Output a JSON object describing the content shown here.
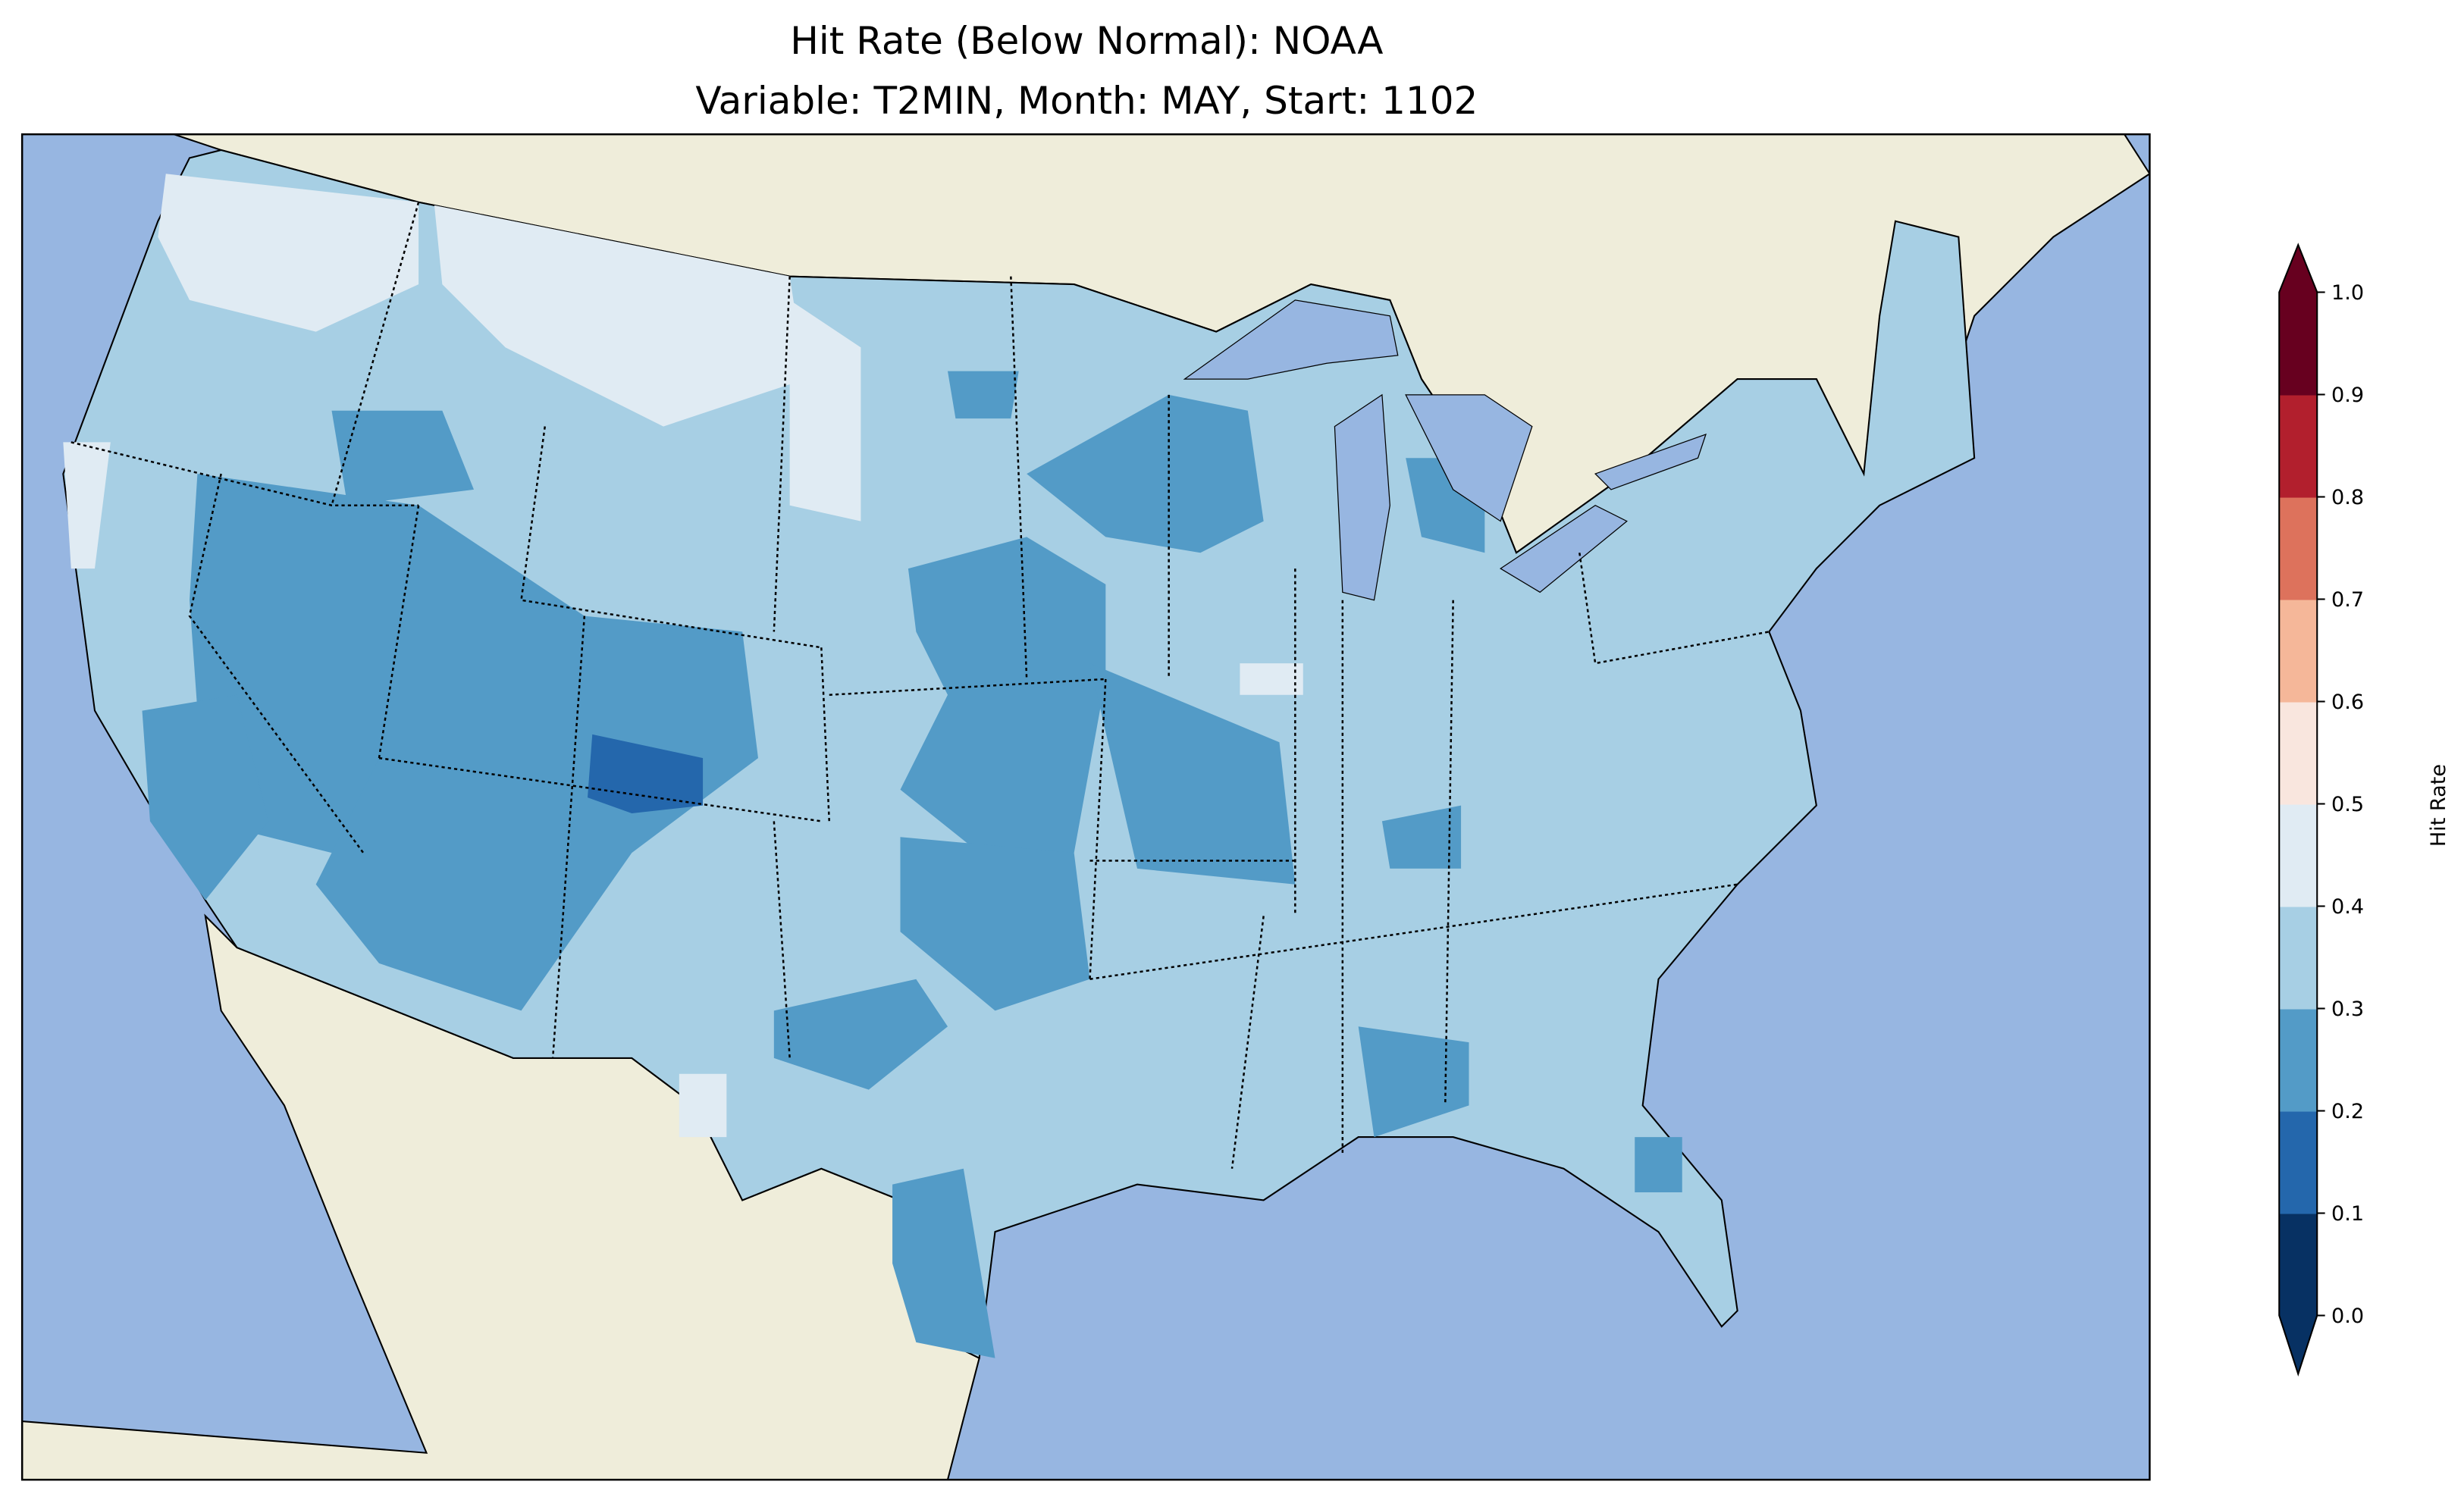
{
  "title": {
    "line1": "Hit Rate (Below Normal): NOAA",
    "line2": "Variable: T2MIN, Month: MAY, Start: 1102"
  },
  "map": {
    "region": "Contiguous United States",
    "colors": {
      "ocean": "#97b6e1",
      "land": "#efedda",
      "lakes": "#97b6e1"
    }
  },
  "colorbar": {
    "label": "Hit Rate",
    "ticks": [
      "0.0",
      "0.1",
      "0.2",
      "0.3",
      "0.4",
      "0.5",
      "0.6",
      "0.7",
      "0.8",
      "0.9",
      "1.0"
    ],
    "extend": "both",
    "colors": [
      "#073163",
      "#2467ac",
      "#539bc7",
      "#a7cfe4",
      "#e0ebf3",
      "#f9e6de",
      "#f5b799",
      "#dd725c",
      "#b21f2d",
      "#67001f"
    ],
    "under_color": "#073163",
    "over_color": "#67001f"
  }
}
